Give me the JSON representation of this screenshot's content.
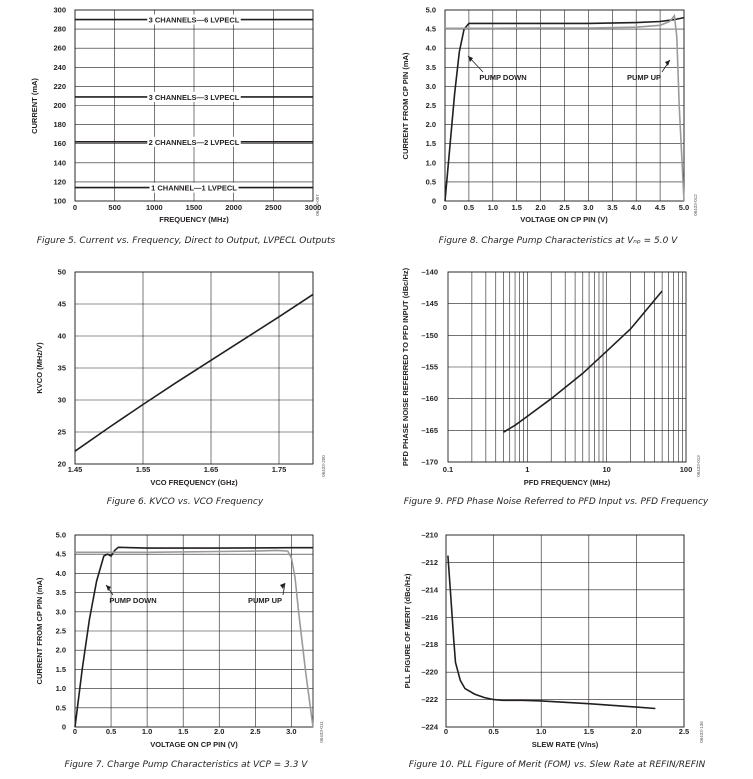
{
  "chart_data": [
    {
      "id": "fig5",
      "type": "line",
      "title": "",
      "caption": "Figure 5. Current vs. Frequency, Direct to Output, LVPECL Outputs",
      "code": "06433-007",
      "xlabel": "FREQUENCY (MHz)",
      "ylabel": "CURRENT (mA)",
      "xlim": [
        0,
        3000
      ],
      "ylim": [
        100,
        300
      ],
      "xticks": [
        "0",
        "500",
        "1000",
        "1500",
        "2000",
        "2500",
        "3000"
      ],
      "yticks": [
        "100",
        "120",
        "140",
        "160",
        "180",
        "200",
        "220",
        "240",
        "260",
        "280",
        "300"
      ],
      "grid": true,
      "series": [
        {
          "name": "3 CHANNELS—6 LVPECL",
          "x": [
            0,
            3000
          ],
          "y": [
            290,
            290
          ]
        },
        {
          "name": "3 CHANNELS—3 LVPECL",
          "x": [
            0,
            3000
          ],
          "y": [
            209,
            209
          ]
        },
        {
          "name": "2 CHANNELS—2 LVPECL",
          "x": [
            0,
            3000
          ],
          "y": [
            162,
            162
          ]
        },
        {
          "name": "1 CHANNEL—1 LVPECL",
          "x": [
            0,
            3000
          ],
          "y": [
            114,
            114
          ]
        }
      ]
    },
    {
      "id": "fig8",
      "type": "line",
      "title": "",
      "caption": "Figure 8. Charge Pump Characteristics at Vₙₚ = 5.0 V",
      "code": "06433-012",
      "xlabel": "VOLTAGE ON CP PIN (V)",
      "ylabel": "CURRENT FROM CP PIN (mA)",
      "xlim": [
        0,
        5.0
      ],
      "ylim": [
        0,
        5.0
      ],
      "xticks": [
        "0",
        "0.5",
        "1.0",
        "1.5",
        "2.0",
        "2.5",
        "3.0",
        "3.5",
        "4.0",
        "4.5",
        "5.0"
      ],
      "yticks": [
        "0",
        "0.5",
        "1.0",
        "1.5",
        "2.0",
        "2.5",
        "3.0",
        "3.5",
        "4.0",
        "4.5",
        "5.0"
      ],
      "grid": true,
      "annotations": [
        "PUMP DOWN",
        "PUMP UP"
      ],
      "series": [
        {
          "name": "PUMP DOWN",
          "color": "#231f20",
          "x": [
            0,
            0.1,
            0.2,
            0.3,
            0.4,
            0.5,
            1.0,
            2.0,
            3.0,
            4.0,
            4.5,
            4.8,
            5.0
          ],
          "y": [
            0,
            1.4,
            2.8,
            3.9,
            4.5,
            4.65,
            4.65,
            4.65,
            4.65,
            4.67,
            4.7,
            4.75,
            4.8
          ]
        },
        {
          "name": "PUMP UP",
          "color": "#9a9a9a",
          "x": [
            0,
            0.5,
            1.0,
            2.0,
            3.0,
            4.0,
            4.5,
            4.7,
            4.8,
            4.85,
            4.9,
            5.0
          ],
          "y": [
            4.52,
            4.52,
            4.52,
            4.53,
            4.53,
            4.55,
            4.6,
            4.7,
            4.85,
            4.3,
            2.5,
            0
          ]
        }
      ]
    },
    {
      "id": "fig6",
      "type": "line",
      "title": "",
      "caption": "Figure 6. KVCO vs. VCO Frequency",
      "code": "06433-200",
      "xlabel": "VCO FREQUENCY (GHz)",
      "ylabel": "KVCO (MHz/V)",
      "xlim": [
        1.45,
        1.8
      ],
      "ylim": [
        20,
        50
      ],
      "xticks": [
        "1.45",
        "1.55",
        "1.65",
        "1.75"
      ],
      "yticks": [
        "20",
        "25",
        "30",
        "35",
        "40",
        "45",
        "50"
      ],
      "grid": true,
      "series": [
        {
          "x": [
            1.45,
            1.5,
            1.55,
            1.6,
            1.65,
            1.7,
            1.75,
            1.8
          ],
          "y": [
            22.0,
            25.7,
            29.3,
            32.8,
            36.2,
            39.6,
            43.0,
            46.5
          ]
        }
      ]
    },
    {
      "id": "fig9",
      "type": "line",
      "title": "",
      "caption": "Figure 9. PFD Phase Noise Referred to PFD Input vs. PFD Frequency",
      "code": "06433-013",
      "xlabel": "PFD FREQUENCY (MHz)",
      "ylabel": "PFD PHASE NOISE REFERRED TO PFD INPUT (dBc/Hz)",
      "xscale": "log",
      "xlim": [
        0.1,
        100
      ],
      "ylim": [
        -170,
        -140
      ],
      "xticks": [
        "0.1",
        "1",
        "10",
        "100"
      ],
      "yticks": [
        "–140",
        "–145",
        "–150",
        "–155",
        "–160",
        "–165",
        "–170"
      ],
      "grid": true,
      "series": [
        {
          "x": [
            0.5,
            0.7,
            1.0,
            2.0,
            5.0,
            10.0,
            20.0,
            50.0
          ],
          "y": [
            -165.3,
            -164.2,
            -162.8,
            -160.0,
            -156.0,
            -152.5,
            -149.0,
            -143.0
          ]
        }
      ]
    },
    {
      "id": "fig7",
      "type": "line",
      "title": "",
      "caption": "Figure 7. Charge Pump Characteristics at VCP = 3.3 V",
      "code": "06433-011",
      "xlabel": "VOLTAGE ON CP PIN (V)",
      "ylabel": "CURRENT FROM CP PIN (mA)",
      "xlim": [
        0,
        3.3
      ],
      "ylim": [
        0,
        5.0
      ],
      "xticks": [
        "0",
        "0.5",
        "1.0",
        "1.5",
        "2.0",
        "2.5",
        "3.0"
      ],
      "yticks": [
        "0",
        "0.5",
        "1.0",
        "1.5",
        "2.0",
        "2.5",
        "3.0",
        "3.5",
        "4.0",
        "4.5",
        "5.0"
      ],
      "grid": true,
      "annotations": [
        "PUMP DOWN",
        "PUMP UP"
      ],
      "series": [
        {
          "name": "PUMP DOWN",
          "color": "#231f20",
          "x": [
            0,
            0.1,
            0.2,
            0.3,
            0.4,
            0.45,
            0.5,
            0.55,
            0.6,
            1.0,
            2.0,
            3.0,
            3.3
          ],
          "y": [
            0,
            1.5,
            2.8,
            3.8,
            4.45,
            4.5,
            4.45,
            4.6,
            4.68,
            4.66,
            4.66,
            4.67,
            4.67
          ]
        },
        {
          "name": "PUMP UP",
          "color": "#9a9a9a",
          "x": [
            0,
            0.5,
            1.0,
            2.0,
            2.5,
            2.8,
            2.95,
            3.0,
            3.05,
            3.1,
            3.2,
            3.3
          ],
          "y": [
            4.55,
            4.55,
            4.55,
            4.57,
            4.58,
            4.6,
            4.58,
            4.4,
            3.9,
            3.0,
            1.4,
            0
          ]
        }
      ]
    },
    {
      "id": "fig10",
      "type": "line",
      "title": "",
      "caption": "Figure 10. PLL Figure of Merit (FOM) vs. Slew Rate at REFIN/REFIN",
      "code": "06433-136",
      "xlabel": "SLEW RATE (V/ns)",
      "ylabel": "PLL FIGURE OF MERIT (dBc/Hz)",
      "xlim": [
        0,
        2.5
      ],
      "ylim": [
        -224,
        -210
      ],
      "xticks": [
        "0",
        "0.5",
        "1.0",
        "1.5",
        "2.0",
        "2.5"
      ],
      "yticks": [
        "–210",
        "–212",
        "–214",
        "–216",
        "–218",
        "–220",
        "–222",
        "–224"
      ],
      "grid": true,
      "series": [
        {
          "x": [
            0.02,
            0.05,
            0.08,
            0.1,
            0.15,
            0.2,
            0.3,
            0.4,
            0.5,
            0.6,
            0.8,
            1.0,
            1.5,
            2.0,
            2.2
          ],
          "y": [
            -211.5,
            -214.5,
            -217.5,
            -219.3,
            -220.6,
            -221.2,
            -221.6,
            -221.85,
            -222.0,
            -222.05,
            -222.05,
            -222.1,
            -222.3,
            -222.55,
            -222.65
          ]
        }
      ]
    }
  ]
}
